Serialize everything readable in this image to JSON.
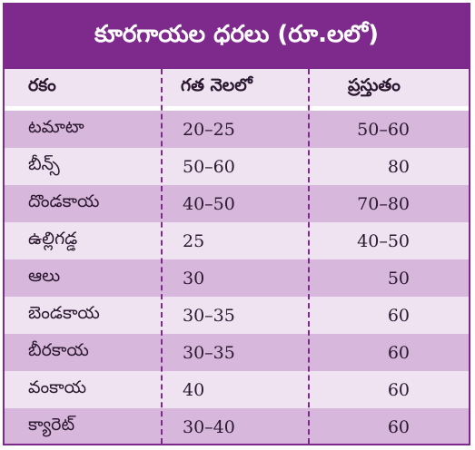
{
  "title": "కూరగాయల ధరలు (రూ.లలో)",
  "headers": {
    "item": "రకం",
    "last_month": "గత నెలలో",
    "current": "ప్రస్తుతం"
  },
  "rows": [
    {
      "item": "టమాటా",
      "last_month": "20–25",
      "current": "50–60"
    },
    {
      "item": "బీన్స్",
      "last_month": "50–60",
      "current": "80"
    },
    {
      "item": "దొండకాయ",
      "last_month": "40–50",
      "current": "70–80"
    },
    {
      "item": "ఉల్లిగడ్డ",
      "last_month": "25",
      "current": "40–50"
    },
    {
      "item": "ఆలు",
      "last_month": "30",
      "current": "50"
    },
    {
      "item": "బెండకాయ",
      "last_month": "30–35",
      "current": "60"
    },
    {
      "item": "బీరకాయ",
      "last_month": "30–35",
      "current": "60"
    },
    {
      "item": "వంకాయ",
      "last_month": "40",
      "current": "60"
    },
    {
      "item": "క్యారెట్",
      "last_month": "30–40",
      "current": "60"
    }
  ],
  "colors": {
    "accent": "#7d2a8c",
    "row_dark": "#d7b7dc",
    "row_light": "#f0e3f1"
  }
}
